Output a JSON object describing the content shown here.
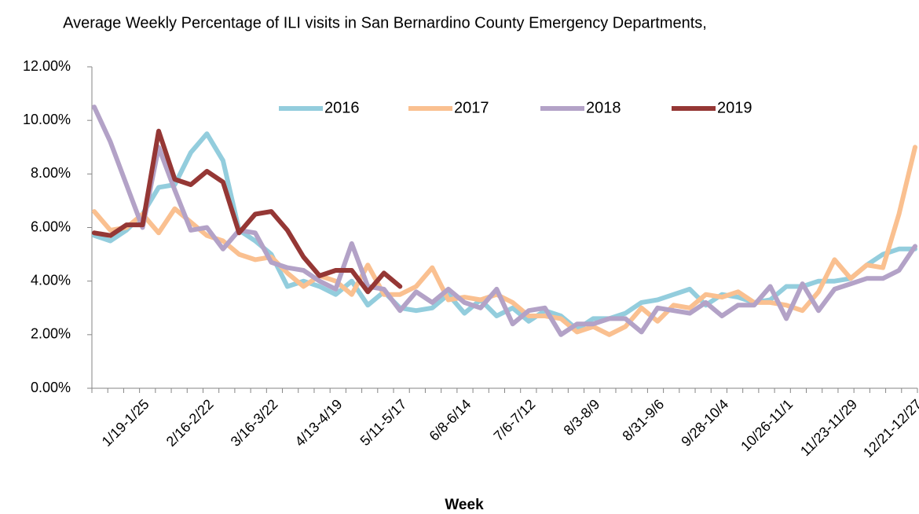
{
  "chart_data": {
    "type": "line",
    "title": "Average Weekly Percentage of ILI visits in San Bernardino County Emergency Departments,",
    "x_label": "Week",
    "categories": [
      null,
      null,
      null,
      "1/19-1/25",
      null,
      null,
      null,
      "2/16-2/22",
      null,
      null,
      null,
      "3/16-3/22",
      null,
      null,
      null,
      "4/13-4/19",
      null,
      null,
      null,
      "5/11-5/17",
      null,
      null,
      null,
      "6/8-6/14",
      null,
      null,
      null,
      "7/6-7/12",
      null,
      null,
      null,
      "8/3-8/9",
      null,
      null,
      null,
      "8/31-9/6",
      null,
      null,
      null,
      "9/28-10/4",
      null,
      null,
      null,
      "10/26-11/1",
      null,
      null,
      null,
      "11/23-11/29",
      null,
      null,
      null,
      "12/21-12/27"
    ],
    "series": [
      {
        "name": "2016",
        "color": "#93cddd",
        "values": [
          5.7,
          5.5,
          5.9,
          6.5,
          7.5,
          7.6,
          8.8,
          9.5,
          8.5,
          5.9,
          5.5,
          5.0,
          3.8,
          4.0,
          3.8,
          3.5,
          4.0,
          3.1,
          3.6,
          3.0,
          2.9,
          3.0,
          3.5,
          2.8,
          3.3,
          2.7,
          3.0,
          2.5,
          2.9,
          2.7,
          2.2,
          2.6,
          2.6,
          2.8,
          3.2,
          3.3,
          3.5,
          3.7,
          3.1,
          3.5,
          3.4,
          3.2,
          3.3,
          3.8,
          3.8,
          4.0,
          4.0,
          4.1,
          4.6,
          5.0,
          5.2,
          5.2
        ]
      },
      {
        "name": "2017",
        "color": "#fac090",
        "values": [
          6.6,
          5.9,
          6.0,
          6.5,
          5.8,
          6.7,
          6.2,
          5.7,
          5.5,
          5.0,
          4.8,
          4.9,
          4.3,
          3.8,
          4.2,
          4.0,
          3.5,
          4.6,
          3.5,
          3.5,
          3.8,
          4.5,
          3.3,
          3.4,
          3.3,
          3.5,
          3.2,
          2.7,
          2.7,
          2.6,
          2.1,
          2.3,
          2.0,
          2.3,
          3.0,
          2.5,
          3.1,
          3.0,
          3.5,
          3.4,
          3.6,
          3.2,
          3.2,
          3.1,
          2.9,
          3.6,
          4.8,
          4.1,
          4.6,
          4.5,
          6.5,
          9.0
        ]
      },
      {
        "name": "2018",
        "color": "#b3a2c7",
        "values": [
          10.5,
          9.2,
          7.6,
          6.0,
          9.0,
          7.4,
          5.9,
          6.0,
          5.2,
          5.9,
          5.8,
          4.7,
          4.5,
          4.4,
          4.0,
          3.7,
          5.4,
          3.8,
          3.7,
          2.9,
          3.6,
          3.2,
          3.7,
          3.2,
          3.0,
          3.7,
          2.4,
          2.9,
          3.0,
          2.0,
          2.4,
          2.4,
          2.6,
          2.6,
          2.1,
          3.0,
          2.9,
          2.8,
          3.2,
          2.7,
          3.1,
          3.1,
          3.8,
          2.6,
          3.9,
          2.9,
          3.7,
          3.9,
          4.1,
          4.1,
          4.4,
          5.3
        ]
      },
      {
        "name": "2019",
        "color": "#953735",
        "values": [
          5.8,
          5.7,
          6.1,
          6.1,
          9.6,
          7.8,
          7.6,
          8.1,
          7.7,
          5.8,
          6.5,
          6.6,
          5.9,
          4.9,
          4.2,
          4.4,
          4.4,
          3.6,
          4.3,
          3.8,
          null,
          null,
          null,
          null,
          null,
          null,
          null,
          null,
          null,
          null,
          null,
          null,
          null,
          null,
          null,
          null,
          null,
          null,
          null,
          null,
          null,
          null,
          null,
          null,
          null,
          null,
          null,
          null,
          null,
          null,
          null,
          null
        ]
      }
    ],
    "ylim": [
      0,
      12
    ],
    "yticks": [
      {
        "value": 0,
        "label": "0.00%"
      },
      {
        "value": 2,
        "label": "2.00%"
      },
      {
        "value": 4,
        "label": "4.00%"
      },
      {
        "value": 6,
        "label": "6.00%"
      },
      {
        "value": 8,
        "label": "8.00%"
      },
      {
        "value": 10,
        "label": "10.00%"
      },
      {
        "value": 12,
        "label": "12.00%"
      }
    ],
    "legend": "top"
  }
}
